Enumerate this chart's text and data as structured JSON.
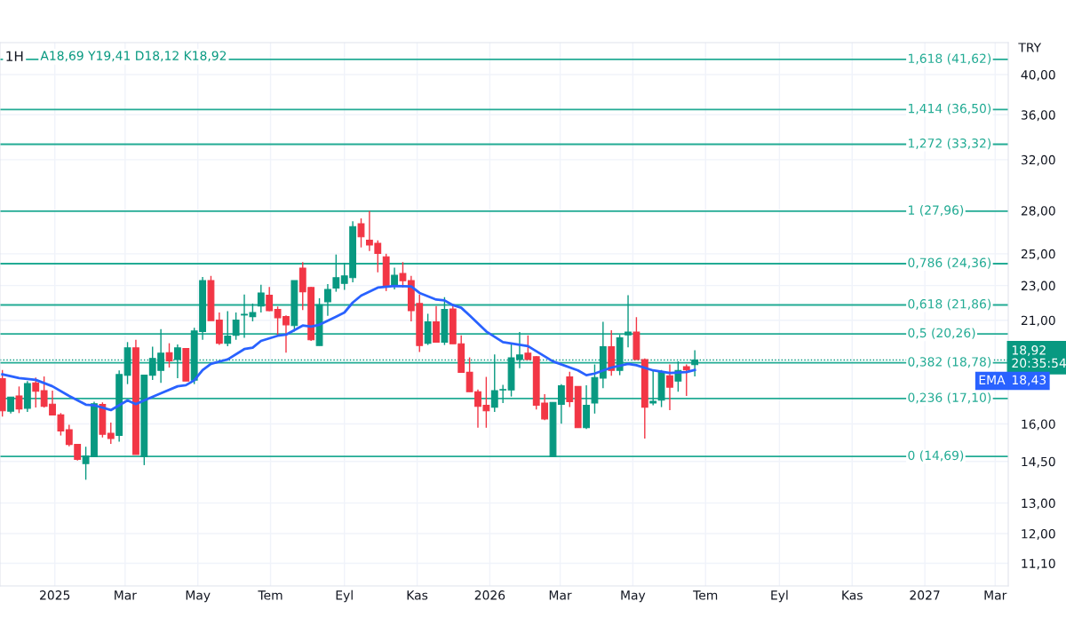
{
  "chart_data": {
    "type": "candlestick",
    "title": "1H",
    "subtitle": "A18,69 Y19,41 D18,12 K18,92",
    "x": [
      "2024-11-18",
      "2024-11-25",
      "2024-12-02",
      "2024-12-09",
      "2024-12-16",
      "2024-12-23",
      "2024-12-30",
      "2025-01-06",
      "2025-01-13",
      "2025-01-20",
      "2025-01-27",
      "2025-02-03",
      "2025-02-10",
      "2025-02-17",
      "2025-02-24",
      "2025-03-03",
      "2025-03-10",
      "2025-03-17",
      "2025-03-24",
      "2025-03-31",
      "2025-04-07",
      "2025-04-14",
      "2025-04-21",
      "2025-04-28",
      "2025-05-05",
      "2025-05-12",
      "2025-05-19",
      "2025-05-26",
      "2025-06-02",
      "2025-06-09",
      "2025-06-16",
      "2025-06-23",
      "2025-06-30",
      "2025-07-07",
      "2025-07-14",
      "2025-07-21",
      "2025-07-28",
      "2025-08-04",
      "2025-08-11",
      "2025-08-18",
      "2025-08-25",
      "2025-09-01",
      "2025-09-08",
      "2025-09-15",
      "2025-09-22",
      "2025-09-29",
      "2025-10-06",
      "2025-10-13",
      "2025-10-20",
      "2025-10-27",
      "2025-11-03",
      "2025-11-10",
      "2025-11-17",
      "2025-11-24",
      "2025-12-01",
      "2025-12-08",
      "2025-12-15",
      "2025-12-22",
      "2025-12-29",
      "2026-01-05",
      "2026-01-12",
      "2026-01-19",
      "2026-01-26",
      "2026-02-02",
      "2026-02-09",
      "2026-02-16",
      "2026-02-23",
      "2026-03-02",
      "2026-03-09",
      "2026-03-16",
      "2026-03-23",
      "2026-03-30",
      "2026-04-06",
      "2026-04-13",
      "2026-04-20",
      "2026-04-27",
      "2026-05-04",
      "2026-05-11",
      "2026-05-18",
      "2026-05-25",
      "2026-06-01",
      "2026-06-08",
      "2026-06-15",
      "2026-06-22"
    ],
    "ohlc": [
      [
        18.01,
        18.43,
        16.31,
        16.56
      ],
      [
        16.54,
        17.17,
        16.44,
        17.17
      ],
      [
        17.22,
        17.65,
        16.46,
        16.64
      ],
      [
        16.67,
        17.9,
        16.51,
        17.79
      ],
      [
        17.82,
        18.07,
        16.7,
        17.43
      ],
      [
        17.46,
        18.12,
        16.7,
        16.75
      ],
      [
        16.85,
        17.46,
        16.36,
        16.38
      ],
      [
        16.38,
        16.46,
        15.52,
        15.71
      ],
      [
        15.76,
        15.96,
        15.09,
        15.16
      ],
      [
        15.16,
        15.16,
        14.53,
        14.58
      ],
      [
        14.42,
        15.07,
        13.82,
        14.7
      ],
      [
        14.68,
        16.96,
        14.66,
        16.87
      ],
      [
        16.84,
        16.93,
        15.44,
        15.57
      ],
      [
        15.61,
        16.06,
        15.18,
        15.4
      ],
      [
        15.52,
        18.41,
        15.27,
        18.21
      ],
      [
        18.18,
        19.83,
        17.76,
        19.53
      ],
      [
        19.53,
        19.95,
        14.77,
        14.77
      ],
      [
        14.68,
        18.18,
        14.36,
        18.18
      ],
      [
        18.18,
        19.59,
        17.95,
        19.0
      ],
      [
        18.41,
        20.52,
        17.82,
        19.26
      ],
      [
        19.29,
        19.77,
        18.55,
        18.88
      ],
      [
        18.94,
        19.71,
        18.04,
        19.53
      ],
      [
        19.5,
        19.53,
        17.9,
        17.9
      ],
      [
        17.95,
        20.59,
        17.76,
        20.42
      ],
      [
        20.39,
        23.52,
        19.95,
        23.3
      ],
      [
        23.3,
        23.59,
        20.98,
        20.98
      ],
      [
        21.01,
        21.43,
        19.68,
        19.77
      ],
      [
        19.77,
        21.5,
        19.62,
        20.14
      ],
      [
        20.18,
        21.43,
        19.95,
        21.01
      ],
      [
        21.29,
        22.46,
        20.05,
        21.33
      ],
      [
        21.2,
        21.94,
        20.94,
        21.43
      ],
      [
        21.8,
        23.05,
        21.43,
        22.56
      ],
      [
        22.42,
        22.91,
        21.5,
        21.53
      ],
      [
        21.6,
        21.77,
        20.14,
        21.14
      ],
      [
        21.2,
        21.27,
        19.29,
        20.75
      ],
      [
        20.71,
        23.3,
        20.39,
        23.3
      ],
      [
        24.08,
        24.46,
        21.57,
        22.63
      ],
      [
        22.88,
        22.91,
        19.89,
        19.95
      ],
      [
        19.65,
        22.25,
        19.65,
        21.87
      ],
      [
        22.04,
        23.09,
        21.24,
        22.77
      ],
      [
        22.85,
        24.95,
        22.63,
        23.48
      ],
      [
        23.13,
        24.42,
        22.74,
        23.59
      ],
      [
        23.48,
        27.22,
        23.2,
        26.85
      ],
      [
        27.05,
        27.43,
        25.42,
        26.14
      ],
      [
        25.9,
        27.96,
        25.18,
        25.58
      ],
      [
        25.7,
        25.9,
        23.81,
        25.03
      ],
      [
        24.8,
        25.0,
        22.67,
        22.98
      ],
      [
        22.98,
        24.11,
        22.77,
        23.63
      ],
      [
        23.74,
        24.46,
        22.88,
        23.3
      ],
      [
        23.3,
        23.59,
        20.94,
        21.53
      ],
      [
        21.94,
        22.46,
        19.32,
        19.65
      ],
      [
        19.77,
        21.36,
        19.68,
        20.91
      ],
      [
        20.91,
        21.8,
        19.8,
        19.83
      ],
      [
        19.83,
        22.31,
        19.68,
        21.6
      ],
      [
        21.63,
        21.9,
        19.74,
        19.74
      ],
      [
        19.74,
        20.18,
        18.32,
        18.32
      ],
      [
        18.32,
        19.05,
        17.41,
        17.41
      ],
      [
        17.41,
        17.51,
        15.84,
        16.75
      ],
      [
        16.8,
        18.1,
        15.84,
        16.56
      ],
      [
        16.72,
        19.2,
        16.51,
        17.46
      ],
      [
        17.49,
        17.73,
        16.9,
        17.51
      ],
      [
        17.49,
        19.77,
        17.19,
        19.03
      ],
      [
        18.94,
        20.36,
        18.52,
        19.17
      ],
      [
        19.26,
        20.18,
        18.94,
        18.94
      ],
      [
        19.08,
        19.11,
        16.62,
        16.8
      ],
      [
        16.9,
        17.3,
        16.16,
        16.21
      ],
      [
        14.69,
        16.93,
        14.69,
        16.93
      ],
      [
        16.84,
        17.76,
        16.01,
        17.68
      ],
      [
        18.1,
        18.35,
        16.72,
        16.96
      ],
      [
        17.65,
        17.65,
        15.84,
        15.84
      ],
      [
        15.84,
        17.71,
        15.79,
        16.8
      ],
      [
        16.9,
        18.7,
        16.44,
        18.07
      ],
      [
        18.04,
        20.91,
        17.57,
        19.59
      ],
      [
        19.59,
        20.46,
        18.15,
        18.41
      ],
      [
        18.41,
        20.21,
        18.18,
        20.05
      ],
      [
        20.21,
        22.42,
        19.56,
        20.36
      ],
      [
        20.36,
        21.17,
        18.94,
        18.94
      ],
      [
        18.94,
        19.0,
        15.4,
        16.72
      ],
      [
        16.9,
        18.43,
        16.8,
        16.98
      ],
      [
        17.03,
        18.43,
        16.72,
        18.32
      ],
      [
        18.15,
        18.7,
        16.59,
        17.62
      ],
      [
        17.9,
        18.85,
        17.41,
        18.41
      ],
      [
        18.59,
        18.7,
        17.22,
        18.43
      ],
      [
        18.69,
        19.41,
        18.12,
        18.92
      ]
    ],
    "colors": [
      "#f23645",
      "#089981",
      "#f23645",
      "#089981",
      "#f23645",
      "#f23645",
      "#f23645",
      "#f23645",
      "#f23645",
      "#f23645",
      "#089981",
      "#089981",
      "#f23645",
      "#f23645",
      "#089981",
      "#089981",
      "#f23645",
      "#089981",
      "#089981",
      "#089981",
      "#f23645",
      "#089981",
      "#f23645",
      "#089981",
      "#089981",
      "#f23645",
      "#f23645",
      "#089981",
      "#089981",
      "#089981",
      "#089981",
      "#089981",
      "#f23645",
      "#f23645",
      "#f23645",
      "#089981",
      "#f23645",
      "#f23645",
      "#089981",
      "#089981",
      "#089981",
      "#089981",
      "#089981",
      "#f23645",
      "#f23645",
      "#f23645",
      "#f23645",
      "#089981",
      "#f23645",
      "#f23645",
      "#f23645",
      "#089981",
      "#f23645",
      "#089981",
      "#f23645",
      "#f23645",
      "#f23645",
      "#f23645",
      "#f23645",
      "#089981",
      "#089981",
      "#089981",
      "#089981",
      "#f23645",
      "#f23645",
      "#f23645",
      "#089981",
      "#089981",
      "#f23645",
      "#f23645",
      "#089981",
      "#089981",
      "#089981",
      "#f23645",
      "#089981",
      "#089981",
      "#f23645",
      "#f23645",
      "#089981",
      "#089981",
      "#f23645",
      "#089981",
      "#f23645",
      "#089981"
    ],
    "series": [
      {
        "type": "line",
        "name": "EMA",
        "color": "#2962ff",
        "x": [
          "2024-11-18",
          "2024-12-02",
          "2024-12-16",
          "2024-12-30",
          "2025-01-13",
          "2025-01-27",
          "2025-02-03",
          "2025-02-17",
          "2025-03-03",
          "2025-03-10",
          "2025-03-17",
          "2025-03-31",
          "2025-04-14",
          "2025-04-21",
          "2025-04-28",
          "2025-05-05",
          "2025-05-12",
          "2025-05-26",
          "2025-06-09",
          "2025-06-16",
          "2025-06-23",
          "2025-07-07",
          "2025-07-14",
          "2025-07-28",
          "2025-08-04",
          "2025-08-11",
          "2025-08-25",
          "2025-09-01",
          "2025-09-08",
          "2025-09-15",
          "2025-09-29",
          "2025-10-13",
          "2025-10-27",
          "2025-11-03",
          "2025-11-17",
          "2025-11-24",
          "2025-12-01",
          "2025-12-08",
          "2025-12-15",
          "2025-12-29",
          "2026-01-12",
          "2026-02-02",
          "2026-02-23",
          "2026-03-16",
          "2026-03-23",
          "2026-03-30",
          "2026-04-13",
          "2026-04-27",
          "2026-05-04",
          "2026-05-18",
          "2026-06-01",
          "2026-06-15",
          "2026-06-22"
        ],
        "values": [
          18.22,
          18.04,
          17.96,
          17.66,
          17.22,
          16.83,
          16.8,
          16.59,
          17.02,
          16.85,
          17.02,
          17.34,
          17.66,
          17.71,
          17.94,
          18.43,
          18.73,
          18.95,
          19.47,
          19.54,
          19.89,
          20.16,
          20.22,
          20.71,
          20.65,
          20.75,
          21.2,
          21.43,
          22.0,
          22.4,
          22.88,
          22.98,
          22.95,
          22.56,
          22.17,
          22.12,
          21.85,
          21.7,
          21.27,
          20.39,
          19.83,
          19.62,
          18.85,
          18.41,
          18.18,
          18.26,
          18.55,
          18.73,
          18.66,
          18.41,
          18.29,
          18.33,
          18.43
        ]
      }
    ],
    "log": true,
    "ylim": [
      10.46,
      43.5
    ],
    "yticks": [
      {
        "value": 11.1,
        "label": "11,10"
      },
      {
        "value": 12,
        "label": "12,00"
      },
      {
        "value": 13,
        "label": "13,00"
      },
      {
        "value": 14.5,
        "label": "14,50"
      },
      {
        "value": 16,
        "label": "16,00"
      },
      {
        "value": 21,
        "label": "21,00"
      },
      {
        "value": 23,
        "label": "23,00"
      },
      {
        "value": 25,
        "label": "25,00"
      },
      {
        "value": 28,
        "label": "28,00"
      },
      {
        "value": 32,
        "label": "32,00"
      },
      {
        "value": 36,
        "label": "36,00"
      },
      {
        "value": 40,
        "label": "40,00"
      }
    ],
    "xlim": [
      "2024-11-16",
      "2027-03-12"
    ],
    "xticks": [
      {
        "value": "2025-01-01",
        "label": "2025"
      },
      {
        "value": "2025-03-01",
        "label": "Mar"
      },
      {
        "value": "2025-05-01",
        "label": "May"
      },
      {
        "value": "2025-07-01",
        "label": "Tem"
      },
      {
        "value": "2025-09-01",
        "label": "Eyl"
      },
      {
        "value": "2025-11-01",
        "label": "Kas"
      },
      {
        "value": "2026-01-01",
        "label": "2026"
      },
      {
        "value": "2026-03-01",
        "label": "Mar"
      },
      {
        "value": "2026-05-01",
        "label": "May"
      },
      {
        "value": "2026-07-01",
        "label": "Tem"
      },
      {
        "value": "2026-09-01",
        "label": "Eyl"
      },
      {
        "value": "2026-11-01",
        "label": "Kas"
      },
      {
        "value": "2027-01-01",
        "label": "2027"
      },
      {
        "value": "2027-03-01",
        "label": "Mar"
      }
    ],
    "grid": true,
    "ref_lines": [
      {
        "axis": "y",
        "value": 41.62,
        "label": "1,618 (41,62)",
        "color": "#22ab94"
      },
      {
        "axis": "y",
        "value": 36.5,
        "label": "1,414 (36,50)",
        "color": "#22ab94"
      },
      {
        "axis": "y",
        "value": 33.32,
        "label": "1,272 (33,32)",
        "color": "#22ab94"
      },
      {
        "axis": "y",
        "value": 27.96,
        "label": "1 (27,96)",
        "color": "#22ab94"
      },
      {
        "axis": "y",
        "value": 24.36,
        "label": "0,786 (24,36)",
        "color": "#22ab94"
      },
      {
        "axis": "y",
        "value": 21.86,
        "label": "0,618 (21,86)",
        "color": "#22ab94"
      },
      {
        "axis": "y",
        "value": 20.26,
        "label": "0,5 (20,26)",
        "color": "#22ab94"
      },
      {
        "axis": "y",
        "value": 18.78,
        "label": "0,382 (18,78)",
        "color": "#22ab94"
      },
      {
        "axis": "y",
        "value": 17.1,
        "label": "0,236 (17,10)",
        "color": "#22ab94"
      },
      {
        "axis": "y",
        "value": 14.69,
        "label": "0 (14,69)",
        "color": "#22ab94"
      },
      {
        "axis": "y",
        "value": 18.92,
        "label": "18,92",
        "color": "#089981",
        "line_style": "dotted"
      }
    ],
    "annotations": [
      "20:35:54",
      "TRY",
      "18,43"
    ]
  }
}
